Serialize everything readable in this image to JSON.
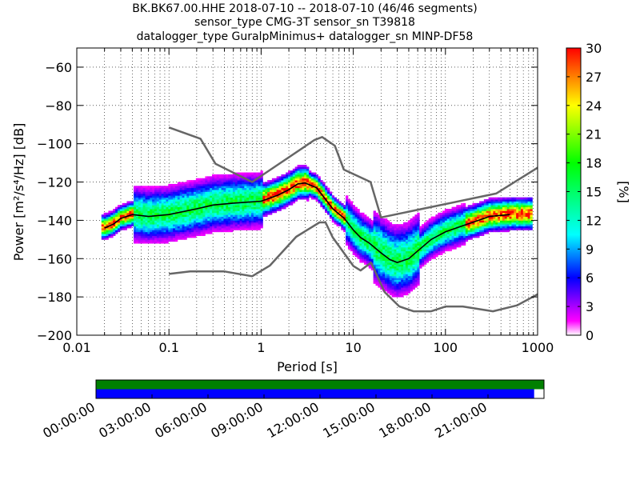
{
  "chart_data": [
    {
      "type": "heatmap",
      "title_lines": [
        "BK.BK67.00.HHE   2018-07-10 -- 2018-07-10  (46/46 segments)",
        "sensor_type CMG-3T sensor_sn T39818",
        "datalogger_type GuralpMinimus+ datalogger_sn MINP-DF58"
      ],
      "xlabel": "Period [s]",
      "ylabel": "Power [m²/s⁴/Hz] [dB]",
      "xscale": "log",
      "xlim": [
        0.01,
        1000
      ],
      "ylim": [
        -200,
        -50
      ],
      "xtick_labels": [
        "0.01",
        "0.1",
        "1",
        "10",
        "100",
        "1000"
      ],
      "ytick_labels": [
        "−60",
        "−80",
        "−100",
        "−120",
        "−140",
        "−160",
        "−180",
        "−200"
      ],
      "grid": true,
      "colorbar": {
        "label": "[%]",
        "range": [
          0,
          30
        ],
        "tick_labels": [
          "0",
          "3",
          "6",
          "9",
          "12",
          "15",
          "18",
          "21",
          "24",
          "27",
          "30"
        ],
        "colormap": "pqlx"
      },
      "series": [
        {
          "name": "",
          "role": "new-high-noise-model",
          "color": "#666666",
          "x": [
            0.1,
            0.22,
            0.32,
            0.8,
            3.8,
            4.6,
            6.3,
            7.9,
            15.4,
            20,
            354.8,
            1000
          ],
          "y": [
            -91.5,
            -97.4,
            -110.5,
            -120,
            -98,
            -96.5,
            -101,
            -113.5,
            -120,
            -138.5,
            -126,
            -112.5
          ]
        },
        {
          "name": "",
          "role": "new-low-noise-model",
          "color": "#666666",
          "x": [
            0.1,
            0.17,
            0.4,
            0.8,
            1.24,
            2.4,
            4.3,
            5.0,
            6.0,
            10.0,
            12.0,
            15.6,
            21.9,
            31.6,
            45,
            70,
            101,
            154,
            328,
            600,
            1000
          ],
          "y": [
            -168,
            -166.7,
            -166.7,
            -169.2,
            -163.7,
            -148.6,
            -141.1,
            -141.1,
            -149,
            -163.8,
            -166.2,
            -162.1,
            -177.5,
            -185,
            -187.5,
            -187.5,
            -185,
            -185,
            -187.5,
            -184.4,
            -178.6
          ]
        },
        {
          "name": "",
          "role": "mode",
          "color": "#000000",
          "x": [
            0.02,
            0.025,
            0.03,
            0.04,
            0.06,
            0.1,
            0.2,
            0.3,
            0.5,
            1,
            1.5,
            2,
            2.5,
            3,
            4,
            5,
            6,
            8,
            10,
            12,
            15,
            20,
            25,
            30,
            40,
            50,
            70,
            100,
            150,
            200,
            300,
            500
          ],
          "y": [
            -144,
            -142,
            -139,
            -137,
            -138,
            -137,
            -134,
            -132,
            -131,
            -130,
            -127,
            -124,
            -121,
            -120.5,
            -123,
            -129,
            -134,
            -139,
            -145,
            -149,
            -152,
            -157,
            -160.5,
            -162,
            -160,
            -156,
            -150,
            -146,
            -143,
            -141,
            -138,
            -137
          ]
        }
      ]
    },
    {
      "type": "timeline",
      "tick_labels": [
        "00:00:00",
        "03:00:00",
        "06:00:00",
        "09:00:00",
        "12:00:00",
        "15:00:00",
        "18:00:00",
        "21:00:00"
      ],
      "bars": [
        {
          "name": "",
          "color": "#008000",
          "coverage": 1.0
        },
        {
          "name": "",
          "color": "#0000ff",
          "coverage": 0.978
        }
      ]
    }
  ]
}
